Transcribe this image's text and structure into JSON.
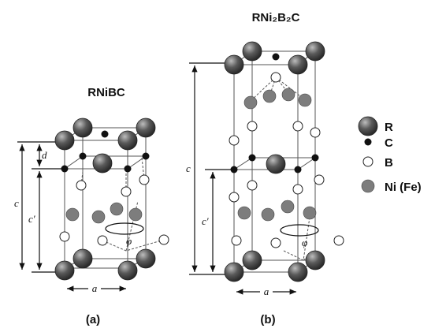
{
  "panel_a": {
    "title": "RNiBC",
    "caption": "(a)",
    "labels": {
      "c": "c",
      "c_prime": "c′",
      "d": "d",
      "a": "a",
      "phi": "φ"
    }
  },
  "panel_b": {
    "title": "RNi₂B₂C",
    "caption": "(b)",
    "labels": {
      "c": "c",
      "c_prime": "c′",
      "a": "a",
      "phi": "φ"
    }
  },
  "legend": [
    {
      "label": "R"
    },
    {
      "label": "C"
    },
    {
      "label": "B"
    },
    {
      "label": "Ni (Fe)"
    }
  ]
}
